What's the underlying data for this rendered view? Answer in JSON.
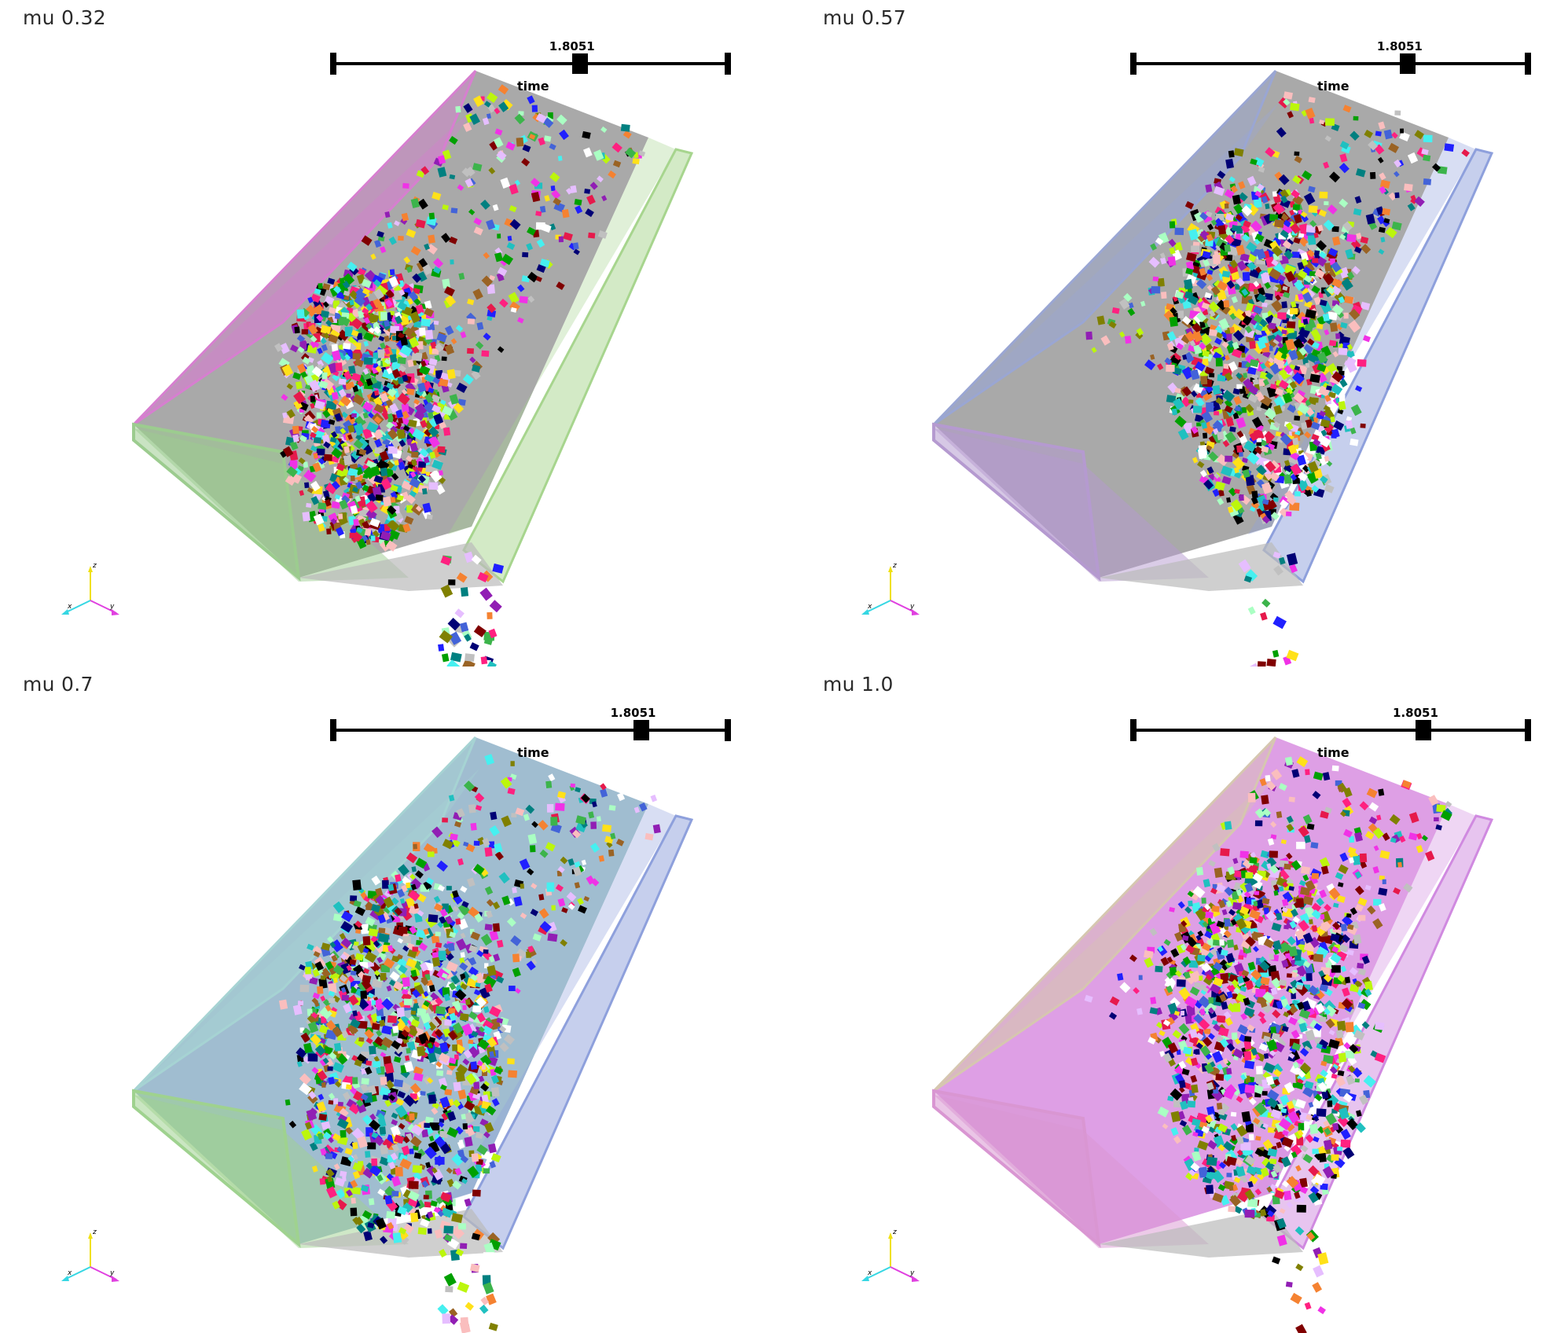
{
  "viewports": [
    {
      "label": "mu 0.32",
      "slider": {
        "title": "time",
        "value_text": "1.8051",
        "position": 0.625
      },
      "colors": {
        "left_wall": "#d77fd0",
        "front_wall": "#9ccc8f",
        "right_wall": "#a7d58e",
        "floor": "#9a9a9a"
      },
      "pile": {
        "center": [
          0.48,
          0.6
        ],
        "spread": 1.0
      }
    },
    {
      "label": "mu 0.57",
      "slider": {
        "title": "time",
        "value_text": "1.8051",
        "position": 0.695
      },
      "colors": {
        "left_wall": "#9aa6d3",
        "front_wall": "#b59ad0",
        "right_wall": "#8ea0dc",
        "floor": "#9a9a9a"
      },
      "pile": {
        "center": [
          0.6,
          0.52
        ],
        "spread": 1.2
      }
    },
    {
      "label": "mu 0.7",
      "slider": {
        "title": "time",
        "value_text": "1.8051",
        "position": 0.78
      },
      "colors": {
        "left_wall": "#a6d3d3",
        "front_wall": "#9fd28f",
        "right_wall": "#8ea0dc",
        "floor": "#8fb2c8"
      },
      "pile": {
        "center": [
          0.52,
          0.58
        ],
        "spread": 1.3
      }
    },
    {
      "label": "mu 1.0",
      "slider": {
        "title": "time",
        "value_text": "1.8051",
        "position": 0.735
      },
      "colors": {
        "left_wall": "#d6c7b0",
        "front_wall": "#d996d2",
        "right_wall": "#d08ae0",
        "floor": "#d88ee0"
      },
      "pile": {
        "center": [
          0.6,
          0.55
        ],
        "spread": 1.3
      }
    }
  ],
  "axes_labels": {
    "x": "x",
    "y": "y",
    "z": "z"
  },
  "axes_colors": {
    "x": "#35d7e3",
    "y": "#e040e0",
    "z": "#f0e010"
  }
}
